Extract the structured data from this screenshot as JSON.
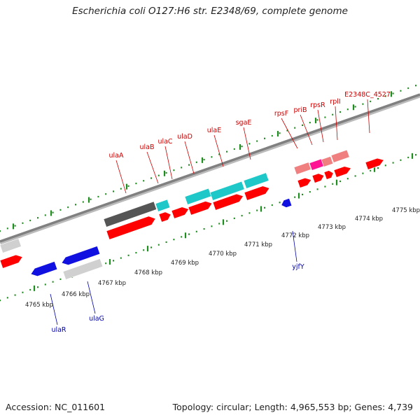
{
  "title": "Escherichia coli O127:H6 str. E2348/69, complete genome",
  "accession": "Accession: NC_011601",
  "summary": "Topology: circular; Length: 4,965,553 bp; Genes: 4,739",
  "colors": {
    "backbone": "#808080",
    "tick": "#1f8c1f",
    "label_top": "#cc0000",
    "label_bottom": "#0000aa",
    "gene_red": "#ff0000",
    "gene_cyan": "#1ec8c8",
    "gene_blue": "#1010e0",
    "gene_grey_dark": "#555555",
    "gene_grey_light": "#d0d0d0",
    "gene_pink": "#f08080",
    "gene_magenta": "#ff1493"
  },
  "scale": {
    "ticks": [
      "4765 kbp",
      "4766 kbp",
      "4767 kbp",
      "4768 kbp",
      "4769 kbp",
      "4770 kbp",
      "4771 kbp",
      "4772 kbp",
      "4773 kbp",
      "4774 kbp",
      "4775 kbp"
    ]
  },
  "top_labels": [
    "ulaA",
    "ulaB",
    "ulaC",
    "ulaD",
    "ulaE",
    "sgaE",
    "rpsF",
    "priB",
    "rpsR",
    "rplI",
    "E2348C_4527"
  ],
  "bottom_labels": [
    "ulaR",
    "ulaG",
    "yjfY"
  ]
}
